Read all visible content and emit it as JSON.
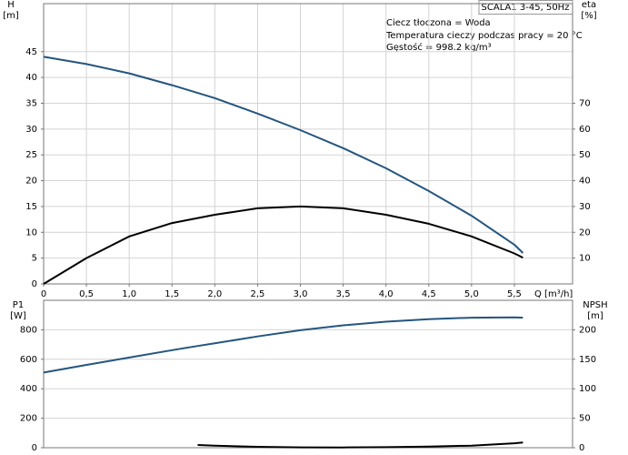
{
  "chart_data": [
    {
      "type": "line",
      "title": "SCALA1 3-45, 50Hz",
      "annotations": [
        "Ciecz tłoczona = Woda",
        "Temperatura cieczy podczas pracy = 20 °C",
        "Gęstość = 998.2 kg/m³"
      ],
      "ylabel": "H",
      "yunit": "[m]",
      "y2label": "eta",
      "y2unit": "[%]",
      "xlabel": "Q [m³/h]",
      "x": [
        0,
        0.5,
        1,
        1.5,
        2,
        2.5,
        3,
        3.5,
        4,
        4.5,
        5,
        5.5,
        5.6
      ],
      "series": [
        {
          "name": "H",
          "color": "#24557f",
          "values": [
            44,
            42.6,
            40.8,
            38.5,
            36,
            33,
            29.8,
            26.3,
            22.4,
            18,
            13.2,
            7.6,
            6
          ]
        },
        {
          "name": "eta",
          "color": "#000000",
          "axis": "y2",
          "values": [
            0,
            10,
            18.4,
            23.6,
            26.8,
            29.3,
            30,
            29.3,
            26.8,
            23.3,
            18.4,
            11.8,
            10.2
          ]
        }
      ],
      "xlim": [
        0,
        6.18
      ],
      "xticks": [
        {
          "value": 0,
          "label": "0"
        },
        {
          "value": 0.5,
          "label": "0,5"
        },
        {
          "value": 1,
          "label": "1,0"
        },
        {
          "value": 1.5,
          "label": "1,5"
        },
        {
          "value": 2,
          "label": "2,0"
        },
        {
          "value": 2.5,
          "label": "2,5"
        },
        {
          "value": 3,
          "label": "3,0"
        },
        {
          "value": 3.5,
          "label": "3,5"
        },
        {
          "value": 4,
          "label": "4,0"
        },
        {
          "value": 4.5,
          "label": "4,5"
        },
        {
          "value": 5,
          "label": "5,0"
        },
        {
          "value": 5.5,
          "label": "5,5"
        }
      ],
      "ylim": [
        0,
        54.3
      ],
      "yticks": [
        0,
        5,
        10,
        15,
        20,
        25,
        30,
        35,
        40,
        45
      ],
      "y2lim": [
        0,
        108.6
      ],
      "y2ticks": [
        10,
        20,
        30,
        40,
        50,
        60,
        70
      ],
      "grid": true
    },
    {
      "type": "line",
      "ylabel": "P1",
      "yunit": "[W]",
      "y2label": "NPSH",
      "y2unit": "[m]",
      "x": [
        0,
        0.5,
        1,
        1.5,
        1.8,
        2,
        2.5,
        3,
        3.5,
        4,
        4.5,
        5,
        5.5,
        5.6
      ],
      "series": [
        {
          "name": "P1",
          "color": "#24557f",
          "values": [
            510,
            562,
            612,
            662,
            690,
            708,
            755,
            797,
            830,
            855,
            872,
            882,
            884,
            882
          ]
        },
        {
          "name": "NPSH",
          "color": "#000000",
          "axis": "y2",
          "values": [
            null,
            null,
            null,
            null,
            4.7,
            3.5,
            1.5,
            0.6,
            0.5,
            1,
            1.8,
            3.5,
            7.5,
            9
          ]
        }
      ],
      "xlim": [
        0,
        6.18
      ],
      "ylim": [
        0,
        1000
      ],
      "yticks": [
        0,
        200,
        400,
        600,
        800
      ],
      "y2lim": [
        0,
        250
      ],
      "y2ticks": [
        0,
        50,
        100,
        150,
        200
      ],
      "grid": true
    }
  ]
}
